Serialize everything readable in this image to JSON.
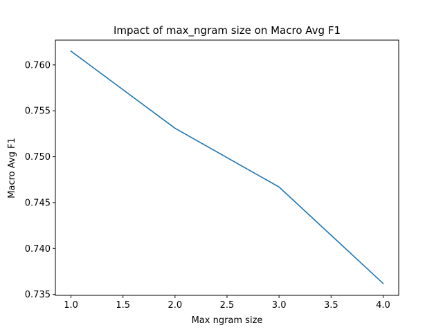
{
  "chart_data": {
    "type": "line",
    "title": "Impact of max_ngram size on Macro Avg F1",
    "xlabel": "Max ngram size",
    "ylabel": "Macro Avg F1",
    "xlim": [
      0.85,
      4.15
    ],
    "ylim": [
      0.7349,
      0.7627
    ],
    "xticks": [
      1.0,
      1.5,
      2.0,
      2.5,
      3.0,
      3.5,
      4.0
    ],
    "xtick_labels": [
      "1.0",
      "1.5",
      "2.0",
      "2.5",
      "3.0",
      "3.5",
      "4.0"
    ],
    "yticks": [
      0.735,
      0.74,
      0.745,
      0.75,
      0.755,
      0.76
    ],
    "ytick_labels": [
      "0.735",
      "0.740",
      "0.745",
      "0.750",
      "0.755",
      "0.760"
    ],
    "grid": false,
    "series": [
      {
        "x": [
          1,
          2,
          3,
          4
        ],
        "values": [
          0.7615,
          0.7531,
          0.7467,
          0.7362
        ],
        "color": "#1f77b4"
      }
    ]
  }
}
